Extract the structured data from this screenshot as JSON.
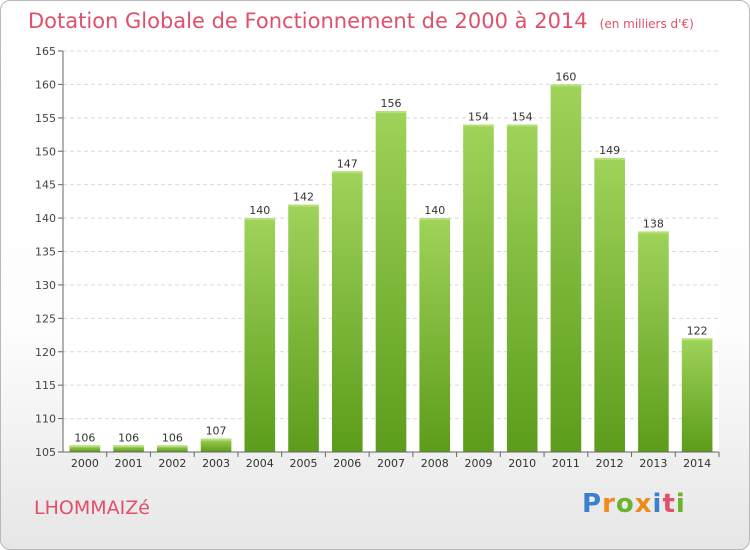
{
  "header": {
    "title": "Dotation Globale de Fonctionnement de 2000 à 2014",
    "unit": "(en milliers d'€)"
  },
  "footer": {
    "commune": "LHOMMAIZé",
    "brand": "Proxiti",
    "brand_colors": [
      "#3a7fd0",
      "#f08a1c",
      "#6ab42d",
      "#f08a1c",
      "#3a7fd0",
      "#e0506a",
      "#6ab42d"
    ]
  },
  "chart_data": {
    "type": "bar",
    "categories": [
      "2000",
      "2001",
      "2002",
      "2003",
      "2004",
      "2005",
      "2006",
      "2007",
      "2008",
      "2009",
      "2010",
      "2011",
      "2012",
      "2013",
      "2014"
    ],
    "values": [
      106,
      106,
      106,
      107,
      140,
      142,
      147,
      156,
      140,
      154,
      154,
      160,
      149,
      138,
      122
    ],
    "data_labels": [
      "106",
      "106",
      "106",
      "107",
      "140",
      "142",
      "147",
      "156",
      "140",
      "154",
      "154",
      "160",
      "149",
      "138",
      "122"
    ],
    "ylim": [
      105,
      165
    ],
    "yticks": [
      105,
      110,
      115,
      120,
      125,
      130,
      135,
      140,
      145,
      150,
      155,
      160,
      165
    ],
    "grid": true,
    "bar_color": "#7cc132",
    "bar_color_dark": "#5a9a1c"
  }
}
